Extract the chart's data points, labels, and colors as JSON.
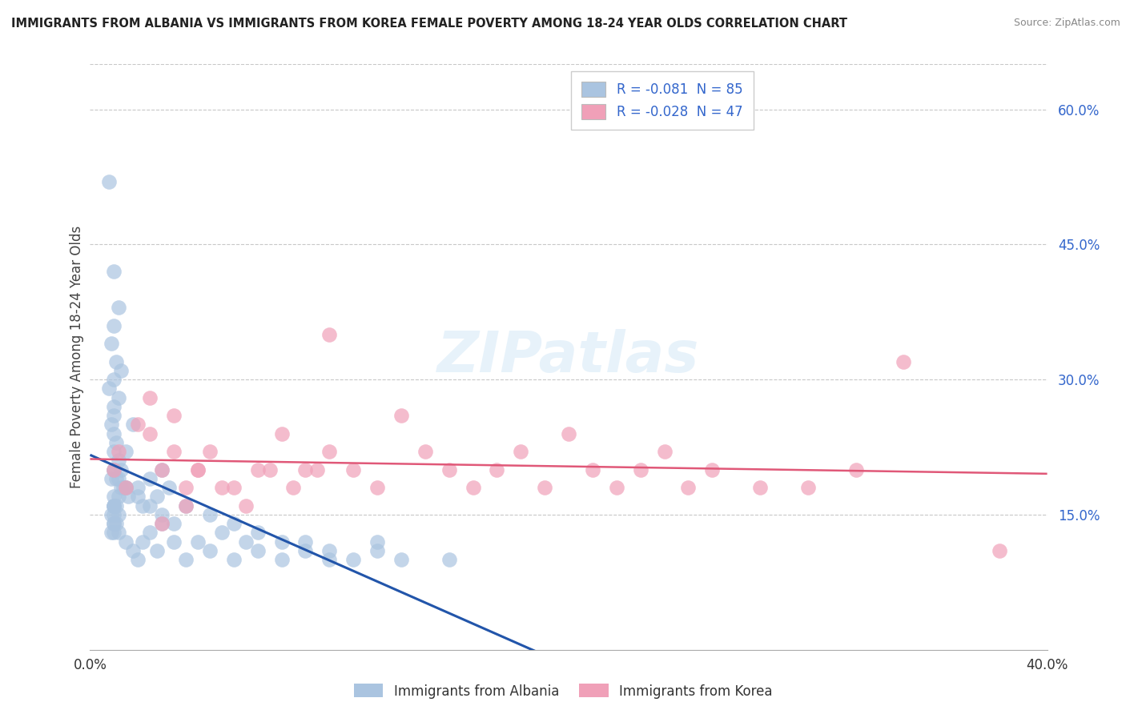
{
  "title": "IMMIGRANTS FROM ALBANIA VS IMMIGRANTS FROM KOREA FEMALE POVERTY AMONG 18-24 YEAR OLDS CORRELATION CHART",
  "source": "Source: ZipAtlas.com",
  "ylabel": "Female Poverty Among 18-24 Year Olds",
  "xlim": [
    0.0,
    0.4
  ],
  "ylim": [
    0.0,
    0.65
  ],
  "yticks": [
    0.15,
    0.3,
    0.45,
    0.6
  ],
  "ytick_labels": [
    "15.0%",
    "30.0%",
    "45.0%",
    "60.0%"
  ],
  "xtick_left": "0.0%",
  "xtick_right": "40.0%",
  "albania_R": "-0.081",
  "albania_N": "85",
  "korea_R": "-0.028",
  "korea_N": "47",
  "albania_color": "#aac4e0",
  "korea_color": "#f0a0b8",
  "albania_line_color": "#2255aa",
  "korea_line_color": "#e05878",
  "background_color": "#ffffff",
  "grid_color": "#c8c8c8",
  "watermark_text": "ZIPatlas",
  "legend_label_albania": "Immigrants from Albania",
  "legend_label_korea": "Immigrants from Korea",
  "albania_x": [
    0.008,
    0.01,
    0.012,
    0.01,
    0.009,
    0.011,
    0.013,
    0.01,
    0.008,
    0.012,
    0.01,
    0.01,
    0.009,
    0.01,
    0.011,
    0.01,
    0.012,
    0.01,
    0.009,
    0.011,
    0.013,
    0.015,
    0.01,
    0.012,
    0.01,
    0.01,
    0.011,
    0.01,
    0.009,
    0.012,
    0.01,
    0.011,
    0.01,
    0.009,
    0.01,
    0.012,
    0.013,
    0.015,
    0.018,
    0.02,
    0.022,
    0.025,
    0.028,
    0.03,
    0.033,
    0.015,
    0.018,
    0.02,
    0.022,
    0.025,
    0.028,
    0.03,
    0.035,
    0.04,
    0.045,
    0.05,
    0.055,
    0.06,
    0.065,
    0.07,
    0.08,
    0.09,
    0.1,
    0.11,
    0.12,
    0.13,
    0.015,
    0.02,
    0.025,
    0.03,
    0.035,
    0.04,
    0.05,
    0.06,
    0.07,
    0.08,
    0.09,
    0.1,
    0.12,
    0.15,
    0.01,
    0.012,
    0.014,
    0.016,
    0.01
  ],
  "albania_y": [
    0.52,
    0.42,
    0.38,
    0.36,
    0.34,
    0.32,
    0.31,
    0.3,
    0.29,
    0.28,
    0.27,
    0.26,
    0.25,
    0.24,
    0.23,
    0.22,
    0.21,
    0.2,
    0.19,
    0.19,
    0.18,
    0.18,
    0.17,
    0.17,
    0.16,
    0.16,
    0.16,
    0.15,
    0.15,
    0.15,
    0.14,
    0.14,
    0.14,
    0.13,
    0.13,
    0.13,
    0.2,
    0.22,
    0.25,
    0.18,
    0.16,
    0.19,
    0.17,
    0.2,
    0.18,
    0.12,
    0.11,
    0.1,
    0.12,
    0.13,
    0.11,
    0.14,
    0.12,
    0.1,
    0.12,
    0.11,
    0.13,
    0.1,
    0.12,
    0.11,
    0.1,
    0.12,
    0.11,
    0.1,
    0.12,
    0.1,
    0.18,
    0.17,
    0.16,
    0.15,
    0.14,
    0.16,
    0.15,
    0.14,
    0.13,
    0.12,
    0.11,
    0.1,
    0.11,
    0.1,
    0.2,
    0.19,
    0.18,
    0.17,
    0.16
  ],
  "korea_x": [
    0.01,
    0.012,
    0.015,
    0.02,
    0.025,
    0.03,
    0.035,
    0.04,
    0.045,
    0.05,
    0.06,
    0.07,
    0.08,
    0.09,
    0.1,
    0.11,
    0.12,
    0.13,
    0.14,
    0.15,
    0.16,
    0.17,
    0.18,
    0.19,
    0.2,
    0.21,
    0.22,
    0.23,
    0.24,
    0.25,
    0.26,
    0.28,
    0.3,
    0.32,
    0.34,
    0.38,
    0.025,
    0.035,
    0.045,
    0.055,
    0.065,
    0.075,
    0.085,
    0.095,
    0.1,
    0.03,
    0.04
  ],
  "korea_y": [
    0.2,
    0.22,
    0.18,
    0.25,
    0.24,
    0.2,
    0.22,
    0.18,
    0.2,
    0.22,
    0.18,
    0.2,
    0.24,
    0.2,
    0.22,
    0.2,
    0.18,
    0.26,
    0.22,
    0.2,
    0.18,
    0.2,
    0.22,
    0.18,
    0.24,
    0.2,
    0.18,
    0.2,
    0.22,
    0.18,
    0.2,
    0.18,
    0.18,
    0.2,
    0.32,
    0.11,
    0.28,
    0.26,
    0.2,
    0.18,
    0.16,
    0.2,
    0.18,
    0.2,
    0.35,
    0.14,
    0.16
  ]
}
